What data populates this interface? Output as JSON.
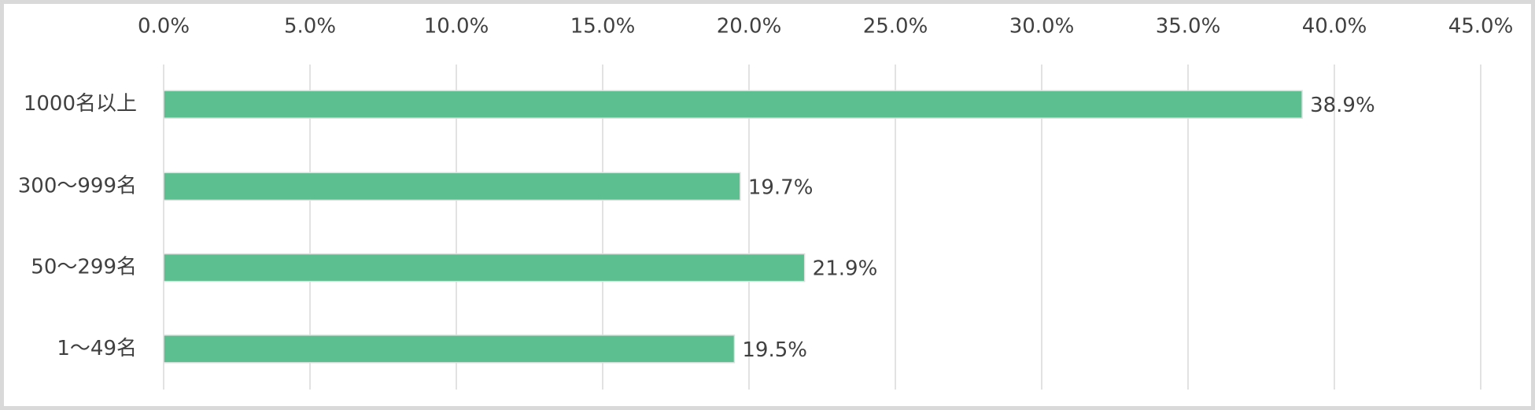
{
  "chart_data": {
    "type": "bar",
    "orientation": "horizontal",
    "categories": [
      "1000名以上",
      "300〜999名",
      "50〜299名",
      "1〜49名"
    ],
    "values": [
      38.9,
      19.7,
      21.9,
      19.5
    ],
    "value_labels": [
      "38.9%",
      "19.7%",
      "21.9%",
      "19.5%"
    ],
    "color": "#5bbf8f",
    "xlim": [
      0,
      45
    ],
    "xticks": [
      {
        "value": 0,
        "label": "0.0%"
      },
      {
        "value": 5,
        "label": "5.0%"
      },
      {
        "value": 10,
        "label": "10.0%"
      },
      {
        "value": 15,
        "label": "15.0%"
      },
      {
        "value": 20,
        "label": "20.0%"
      },
      {
        "value": 25,
        "label": "25.0%"
      },
      {
        "value": 30,
        "label": "30.0%"
      },
      {
        "value": 35,
        "label": "35.0%"
      },
      {
        "value": 40,
        "label": "40.0%"
      },
      {
        "value": 45,
        "label": "45.0%"
      }
    ],
    "grid": true
  }
}
